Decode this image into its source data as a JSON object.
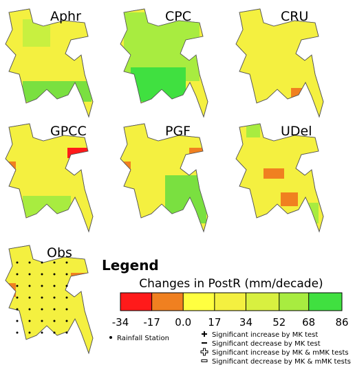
{
  "panels": [
    {
      "title": "Aphr"
    },
    {
      "title": "CPC"
    },
    {
      "title": "CRU"
    },
    {
      "title": "GPCC"
    },
    {
      "title": "PGF"
    },
    {
      "title": "UDel"
    },
    {
      "title": "Obs"
    }
  ],
  "legend": {
    "title": "Legend",
    "scale_title": "Changes in PostR (mm/decade)",
    "ticks": [
      -34,
      -17,
      {
        "value": 0,
        "label": "0.0"
      },
      17,
      34,
      52,
      68,
      86
    ],
    "colors": [
      "#ff1a1a",
      "#f08020",
      "#ffff40",
      "#f4f040",
      "#d8f040",
      "#a8ec40",
      "#40e040"
    ],
    "entries": [
      "Rainfall Station",
      "Significant increase by MK test",
      "Significant decrease by MK test",
      "Significant increase by MK & mMK tests",
      "Significant decrease by MK & mMK tests"
    ]
  }
}
